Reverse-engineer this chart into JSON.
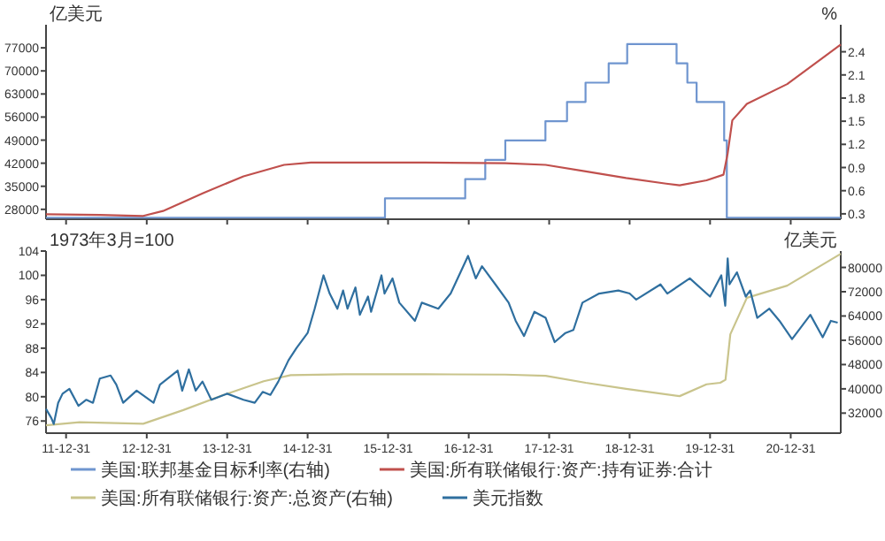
{
  "chart_data": [
    {
      "type": "line",
      "ylabel": "亿美元",
      "y2label": "%",
      "xlim": [
        "2011-10-01",
        "2021-08-15"
      ],
      "xticks": [
        {
          "value": "2011-12-31",
          "label": null
        },
        {
          "value": "2012-12-31",
          "label": null
        },
        {
          "value": "2013-12-31",
          "label": null
        },
        {
          "value": "2014-12-31",
          "label": null
        },
        {
          "value": "2015-12-31",
          "label": null
        },
        {
          "value": "2016-12-31",
          "label": null
        },
        {
          "value": "2017-12-31",
          "label": null
        },
        {
          "value": "2018-12-31",
          "label": null
        },
        {
          "value": "2019-12-31",
          "label": null
        },
        {
          "value": "2020-12-31",
          "label": null
        }
      ],
      "ylim": [
        25000,
        84000
      ],
      "yticks": [
        28000,
        35000,
        42000,
        49000,
        56000,
        63000,
        70000,
        77000
      ],
      "y2lim": [
        0.23,
        2.75
      ],
      "y2ticks": [
        0.3,
        0.6,
        0.9,
        1.2,
        1.5,
        1.8,
        2.1,
        2.4
      ],
      "tick_labels": "y",
      "legend": "bottom",
      "line_style": "solid",
      "marker": "none",
      "series": [
        {
          "name": "美国:联邦基金目标利率(右轴)",
          "type": "step",
          "axis": "y2",
          "color": "#6f95cf",
          "x": [
            "2011-10-01",
            "2015-12-17",
            "2016-12-15",
            "2017-03-16",
            "2017-06-15",
            "2017-12-14",
            "2018-03-22",
            "2018-06-14",
            "2018-09-27",
            "2018-12-20",
            "2019-08-01",
            "2019-09-19",
            "2019-10-31",
            "2020-03-04",
            "2020-03-16",
            "2021-08-15"
          ],
          "values": [
            0.25,
            0.5,
            0.75,
            1.0,
            1.25,
            1.5,
            1.75,
            2.0,
            2.25,
            2.5,
            2.25,
            2.0,
            1.75,
            1.25,
            0.25,
            0.25
          ]
        },
        {
          "name": "美国:所有联储银行:资产:持有证券:合计",
          "color": "#c0504d",
          "x": [
            "2011-10-01",
            "2012-06-01",
            "2012-12-15",
            "2013-03-15",
            "2013-09-15",
            "2014-03-15",
            "2014-09-15",
            "2015-01-15",
            "2016-06-15",
            "2017-06-15",
            "2017-12-15",
            "2018-06-15",
            "2018-12-15",
            "2019-06-15",
            "2019-08-15",
            "2019-12-15",
            "2020-03-01",
            "2020-03-20",
            "2020-04-10",
            "2020-06-15",
            "2020-12-15",
            "2021-06-15",
            "2021-08-15"
          ],
          "values": [
            26500,
            26300,
            26000,
            27500,
            33000,
            38000,
            41500,
            42200,
            42200,
            42000,
            41500,
            39500,
            37500,
            35800,
            35300,
            36800,
            38500,
            45000,
            55000,
            60000,
            66000,
            75000,
            78000
          ]
        }
      ]
    },
    {
      "type": "line",
      "ylabel": "1973年3月=100",
      "y2label": "亿美元",
      "xlim": [
        "2011-10-01",
        "2021-08-15"
      ],
      "xticks": [
        {
          "value": "2011-12-31",
          "label": "11-12-31"
        },
        {
          "value": "2012-12-31",
          "label": "12-12-31"
        },
        {
          "value": "2013-12-31",
          "label": "13-12-31"
        },
        {
          "value": "2014-12-31",
          "label": "14-12-31"
        },
        {
          "value": "2015-12-31",
          "label": "15-12-31"
        },
        {
          "value": "2016-12-31",
          "label": "16-12-31"
        },
        {
          "value": "2017-12-31",
          "label": "17-12-31"
        },
        {
          "value": "2018-12-31",
          "label": "18-12-31"
        },
        {
          "value": "2019-12-31",
          "label": "19-12-31"
        },
        {
          "value": "2020-12-31",
          "label": "20-12-31"
        }
      ],
      "ylim": [
        74,
        104
      ],
      "yticks": [
        76,
        80,
        84,
        88,
        92,
        96,
        100,
        104
      ],
      "y2lim": [
        25400,
        85400
      ],
      "y2ticks": [
        32000,
        40000,
        48000,
        56000,
        64000,
        72000,
        80000
      ],
      "legend": "bottom",
      "line_style": "solid",
      "marker": "none",
      "series": [
        {
          "name": "美国:所有联储银行:资产:总资产(右轴)",
          "axis": "y2",
          "color": "#c9c48c",
          "x": [
            "2011-10-01",
            "2012-03-01",
            "2012-12-15",
            "2013-06-15",
            "2013-12-15",
            "2014-06-15",
            "2014-10-15",
            "2015-06-15",
            "2016-06-15",
            "2017-06-15",
            "2017-12-15",
            "2018-06-15",
            "2018-12-15",
            "2019-08-15",
            "2019-12-15",
            "2020-02-15",
            "2020-03-10",
            "2020-04-01",
            "2020-06-15",
            "2020-12-15",
            "2021-08-15"
          ],
          "values": [
            28000,
            29000,
            28500,
            33000,
            38000,
            42500,
            44500,
            44800,
            44800,
            44700,
            44300,
            42000,
            40000,
            37600,
            41500,
            42000,
            43000,
            58000,
            70000,
            74000,
            84500
          ]
        },
        {
          "name": "美元指数",
          "color": "#2f6f9f",
          "x": [
            "2011-10-01",
            "2011-10-25",
            "2011-11-05",
            "2011-11-25",
            "2011-12-15",
            "2012-01-15",
            "2012-02-25",
            "2012-04-01",
            "2012-05-01",
            "2012-06-01",
            "2012-07-20",
            "2012-08-15",
            "2012-09-15",
            "2012-11-15",
            "2013-01-31",
            "2013-03-01",
            "2013-05-20",
            "2013-06-10",
            "2013-07-10",
            "2013-08-10",
            "2013-09-10",
            "2013-10-20",
            "2013-12-31",
            "2014-03-15",
            "2014-05-05",
            "2014-06-10",
            "2014-07-15",
            "2014-08-20",
            "2014-10-05",
            "2014-11-10",
            "2014-12-31",
            "2015-02-01",
            "2015-03-13",
            "2015-04-10",
            "2015-05-15",
            "2015-06-10",
            "2015-06-30",
            "2015-08-05",
            "2015-08-25",
            "2015-10-01",
            "2015-10-15",
            "2015-12-01",
            "2015-12-15",
            "2016-01-20",
            "2016-02-20",
            "2016-05-01",
            "2016-06-01",
            "2016-08-15",
            "2016-10-10",
            "2016-12-28",
            "2017-02-01",
            "2017-03-01",
            "2017-05-01",
            "2017-06-30",
            "2017-08-01",
            "2017-09-08",
            "2017-10-25",
            "2017-12-15",
            "2018-01-25",
            "2018-03-15",
            "2018-04-20",
            "2018-05-31",
            "2018-08-15",
            "2018-11-10",
            "2018-12-31",
            "2019-01-30",
            "2019-05-20",
            "2019-06-20",
            "2019-09-30",
            "2019-12-31",
            "2020-02-20",
            "2020-03-09",
            "2020-03-20",
            "2020-03-28",
            "2020-05-01",
            "2020-06-10",
            "2020-06-30",
            "2020-08-01",
            "2020-09-25",
            "2020-11-10",
            "2021-01-06",
            "2021-03-30",
            "2021-05-25",
            "2021-07-01",
            "2021-08-01"
          ],
          "values": [
            78,
            76.5,
            75.5,
            79,
            80.5,
            81.3,
            78.5,
            79.5,
            79,
            83,
            83.5,
            82,
            79,
            81,
            79,
            82,
            84.3,
            81,
            84.5,
            81,
            82.5,
            79.5,
            80.5,
            79.5,
            79,
            80.8,
            80.3,
            82.5,
            86,
            88,
            90.5,
            94.5,
            100,
            97,
            94.5,
            97.5,
            94.5,
            98,
            93.5,
            96.5,
            94,
            100,
            97,
            99.5,
            95.5,
            92.5,
            95.5,
            94.5,
            97,
            103.2,
            99.5,
            101.5,
            98.5,
            95.5,
            92.5,
            90,
            94,
            93,
            89,
            90.5,
            91,
            95.5,
            97,
            97.5,
            97,
            96,
            98.5,
            97,
            99.5,
            96.5,
            100,
            95,
            102.8,
            98.5,
            100.5,
            96.5,
            97.5,
            93,
            94.5,
            92.5,
            89.5,
            93.5,
            89.8,
            92.5,
            92.2
          ]
        }
      ]
    }
  ]
}
